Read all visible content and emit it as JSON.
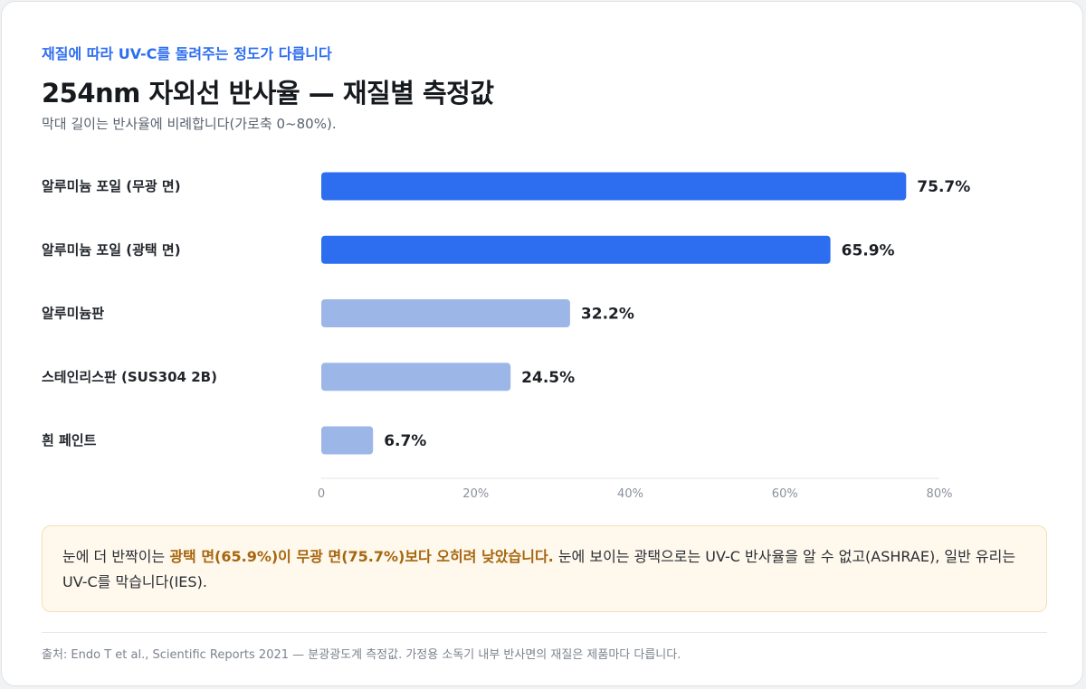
{
  "header": {
    "eyebrow": "재질에 따라 UV-C를 돌려주는 정도가 다릅니다",
    "title": "254nm 자외선 반사율 — 재질별 측정값",
    "subtitle": "막대 길이는 반사율에 비례합니다(가로축 0~80%)."
  },
  "chart_data": {
    "type": "bar",
    "orientation": "horizontal",
    "categories": [
      "알루미늄 포일 (무광 면)",
      "알루미늄 포일 (광택 면)",
      "알루미늄판",
      "스테인리스판 (SUS304 2B)",
      "흰 페인트"
    ],
    "values": [
      75.7,
      65.9,
      32.2,
      24.5,
      6.7
    ],
    "value_labels": [
      "75.7%",
      "65.9%",
      "32.2%",
      "24.5%",
      "6.7%"
    ],
    "bar_colors": [
      "#2d6ef0",
      "#2d6ef0",
      "#9db6e8",
      "#9db6e8",
      "#9db6e8"
    ],
    "xlim": [
      0,
      80
    ],
    "x_ticks": [
      0,
      20,
      40,
      60,
      80
    ],
    "x_tick_labels": [
      "0",
      "20%",
      "40%",
      "60%",
      "80%"
    ],
    "grid": false
  },
  "note": {
    "pre": "눈에 더 반짝이는 ",
    "highlight": "광택 면(65.9%)이 무광 면(75.7%)보다 오히려 낮았습니다.",
    "post": " 눈에 보이는 광택으로는 UV-C 반사율을 알 수 없고(ASHRAE), 일반 유리는 UV-C를 막습니다(IES)."
  },
  "footer": {
    "source": "출처: Endo T et al., Scientific Reports 2021 — 분광광도계 측정값. 가정용 소독기 내부 반사면의 재질은 제품마다 다릅니다."
  },
  "colors": {
    "accent": "#2d6ef0",
    "bar_muted": "#9db6e8",
    "note_highlight": "#a5660f",
    "note_bg": "#fff8ec"
  }
}
